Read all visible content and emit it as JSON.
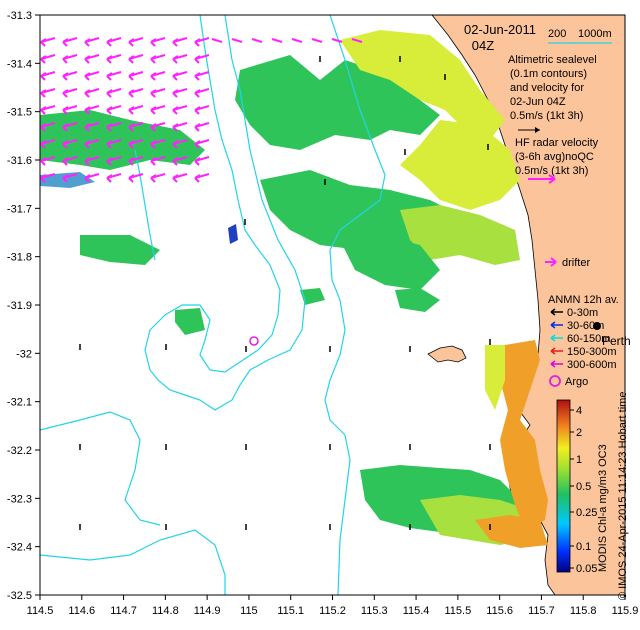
{
  "map": {
    "date": "02-Jun-2011",
    "time": "04Z",
    "bathy_label": "200",
    "bathy_label2": "1000m",
    "altimetric_lines": [
      "Altimetric sealevel",
      "(0.1m contours)",
      "and velocity for",
      "02-Jun 04Z",
      "0.5m/s (1kt 3h)"
    ],
    "hf_lines": [
      "HF radar velocity",
      "(3-6h avg)noQC",
      "0.5m/s (1kt 3h)"
    ],
    "drifter_label": "drifter",
    "anmn_title": "ANMN 12h av.",
    "anmn_items": [
      {
        "label": "0-30m",
        "color": "#000000"
      },
      {
        "label": "30-60m",
        "color": "#0033dd"
      },
      {
        "label": "60-150m",
        "color": "#00dddd"
      },
      {
        "label": "150-300m",
        "color": "#dd2222"
      },
      {
        "label": "300-600m",
        "color": "#dd00dd"
      }
    ],
    "perth_label": "Perth",
    "argo_label": "Argo",
    "colorbar_title": "MODIS Chl-a mg/m3 OC3",
    "credit": "© IMOS 24-Apr-2015 11:14:23 Hobart time",
    "colorbar_ticks": [
      "4",
      "2",
      "1",
      "0.5",
      "0.25",
      "0.1",
      "0.05"
    ],
    "x_ticks": [
      "114.5",
      "114.6",
      "114.7",
      "114.8",
      "114.9",
      "115",
      "115.1",
      "115.2",
      "115.3",
      "115.4",
      "115.5",
      "115.6",
      "115.7",
      "115.8",
      "115.9"
    ],
    "y_ticks": [
      "-31.3",
      "-31.4",
      "-31.5",
      "-31.6",
      "-31.7",
      "-31.8",
      "-31.9",
      "-32",
      "-32.1",
      "-32.2",
      "-32.3",
      "-32.4",
      "-32.5"
    ],
    "colors": {
      "land": "#fbc49a",
      "contour": "#22d4e8",
      "vector": "#ff22ff",
      "chl_green": "#2fc45a",
      "chl_yellow": "#d8ec3a",
      "chl_orange": "#f0a028"
    }
  }
}
